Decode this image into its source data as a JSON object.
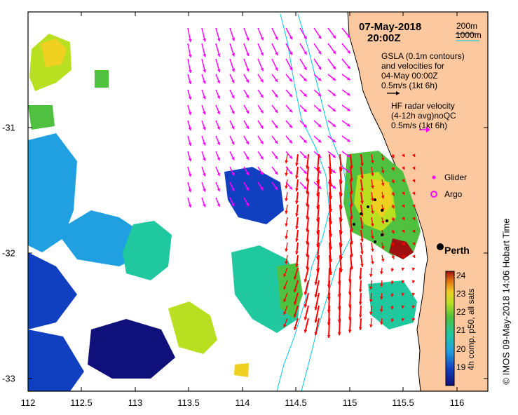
{
  "title": {
    "date": "07-May-2018",
    "time": "20:00Z"
  },
  "depth_legend": {
    "line1": "200m",
    "line2": "1000m"
  },
  "gsla_note": {
    "line1": "GSLA (0.1m contours)",
    "line2": "and velocities for",
    "line3": "04-May 00:00Z",
    "line4": "0.5m/s (1kt 6h)"
  },
  "hf_note": {
    "line1": "HF radar velocity",
    "line2": "(4-12h avg)noQC",
    "line3": "0.5m/s (1kt 6h)"
  },
  "legend": {
    "glider": "Glider",
    "argo": "Argo"
  },
  "place": {
    "name": "Perth",
    "lon": 115.86,
    "lat": -31.95
  },
  "x_axis": {
    "range": [
      112,
      116.3
    ],
    "ticks": [
      "112",
      "112.5",
      "113",
      "113.5",
      "114",
      "114.5",
      "115",
      "115.5",
      "116"
    ]
  },
  "y_axis": {
    "range": [
      -33.1,
      -30.1
    ],
    "ticks": [
      "-31",
      "-32",
      "-33"
    ]
  },
  "colorbar": {
    "ticks": [
      "24",
      "23",
      "22",
      "21",
      "20",
      "19"
    ],
    "title": "4h comp. p50, all sats"
  },
  "credit": "© IMOS 09-May-2018 14:06 Hobart Time",
  "colors": {
    "land": "#fcc8a0",
    "hf_arrows": "#ff00ff",
    "gsla_arrows": "#ff0000",
    "isobath": "#00c8e0"
  }
}
